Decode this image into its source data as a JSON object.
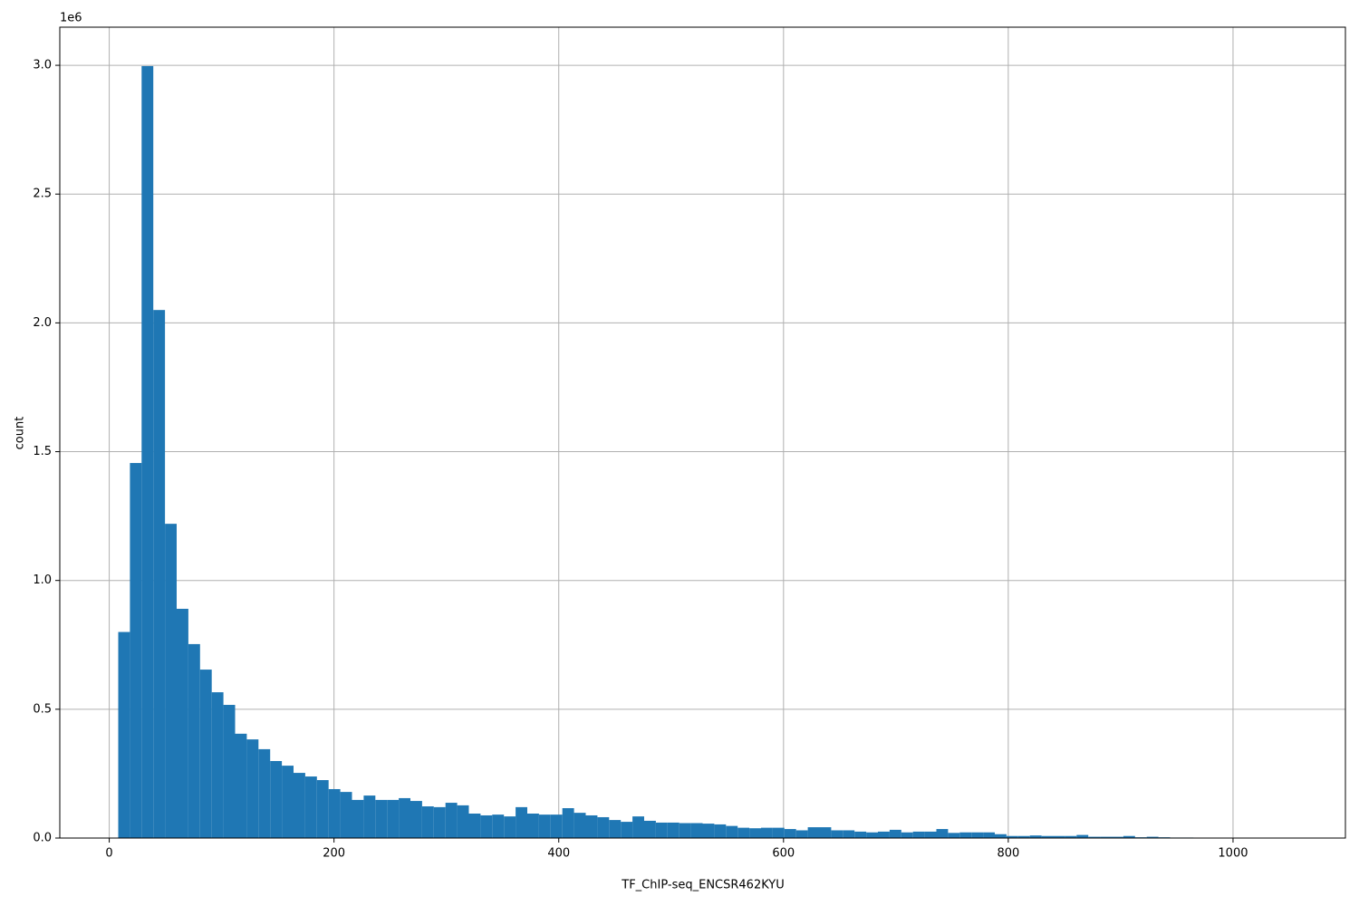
{
  "chart_data": {
    "type": "histogram",
    "x_label": "TF_ChIP-seq_ENCSR462KYU",
    "y_label": "count",
    "y_offset_label": "1e6",
    "color": "#1f77b4",
    "grid": true,
    "bins": [
      8,
      18.4,
      28.8,
      39.2,
      49.6,
      60,
      70.4,
      80.8,
      91.2,
      101.6,
      112,
      122.4,
      132.8,
      143.2,
      153.6,
      164,
      174.4,
      184.8,
      195.2,
      205.6,
      216,
      226.4,
      236.8,
      247.2,
      257.6,
      268,
      278.4,
      288.8,
      299.2,
      309.6,
      320,
      330.4,
      340.8,
      351.2,
      361.6,
      372,
      382.4,
      392.8,
      403.2,
      413.6,
      424,
      434.4,
      444.8,
      455.2,
      465.6,
      476,
      486.4,
      496.8,
      507.2,
      517.6,
      528,
      538.4,
      548.8,
      559.2,
      569.6,
      580,
      590.4,
      600.8,
      611.2,
      621.6,
      632,
      642.4,
      652.8,
      663.2,
      673.6,
      684,
      694.4,
      704.8,
      715.2,
      725.6,
      736,
      746.4,
      756.8,
      767.2,
      777.6,
      788,
      798.4,
      808.8,
      819.2,
      829.6,
      840,
      850.4,
      860.8,
      871.2,
      881.6,
      892,
      902.4,
      912.8,
      923.2,
      933.6,
      944,
      954.4,
      964.8,
      975.2,
      985.6,
      996,
      1006.4,
      1016.8,
      1027.2,
      1037.6,
      1048
    ],
    "values": [
      0.8,
      1.456,
      2.997,
      2.05,
      1.22,
      0.89,
      0.753,
      0.654,
      0.566,
      0.517,
      0.405,
      0.383,
      0.345,
      0.299,
      0.281,
      0.253,
      0.239,
      0.225,
      0.19,
      0.179,
      0.148,
      0.165,
      0.148,
      0.148,
      0.155,
      0.144,
      0.123,
      0.12,
      0.137,
      0.127,
      0.095,
      0.088,
      0.091,
      0.084,
      0.12,
      0.095,
      0.091,
      0.091,
      0.116,
      0.098,
      0.088,
      0.081,
      0.07,
      0.063,
      0.084,
      0.067,
      0.06,
      0.06,
      0.058,
      0.058,
      0.056,
      0.053,
      0.047,
      0.04,
      0.038,
      0.04,
      0.04,
      0.035,
      0.03,
      0.042,
      0.042,
      0.03,
      0.03,
      0.025,
      0.022,
      0.025,
      0.032,
      0.022,
      0.025,
      0.025,
      0.035,
      0.02,
      0.022,
      0.022,
      0.022,
      0.015,
      0.008,
      0.008,
      0.01,
      0.008,
      0.008,
      0.008,
      0.012,
      0.005,
      0.005,
      0.005,
      0.008,
      0.003,
      0.005,
      0.003,
      0.002,
      0.002,
      0.001,
      0.001,
      0.001,
      0.001,
      0.001,
      0.001,
      0.001,
      0.001
    ],
    "xlim": [
      -44,
      1100
    ],
    "xticks": [
      0,
      200,
      400,
      600,
      800,
      1000
    ],
    "ylim": [
      0,
      3.148
    ],
    "yticks": [
      {
        "value": 0,
        "label": "0.0"
      },
      0.5,
      {
        "value": 1,
        "label": "1.0"
      },
      1.5,
      {
        "value": 2,
        "label": "2.0"
      },
      2.5,
      {
        "value": 3,
        "label": "3.0"
      }
    ]
  }
}
